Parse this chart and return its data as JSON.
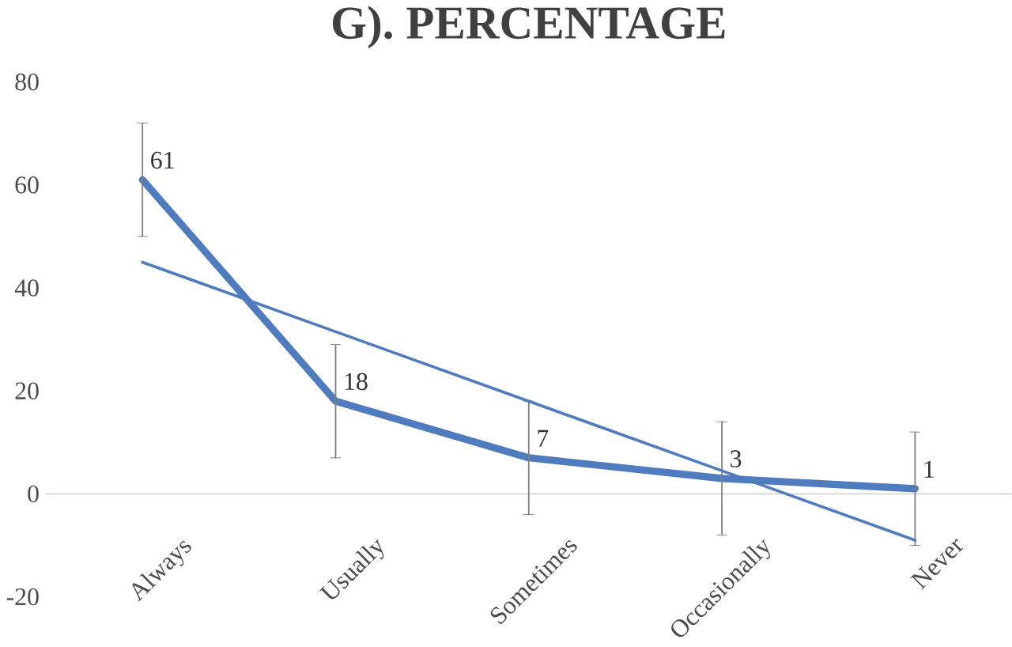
{
  "chart_data": {
    "type": "line",
    "title": "G). PERCENTAGE",
    "categories": [
      "Always",
      "Usually",
      "Sometimes",
      "Occasionally",
      "Never"
    ],
    "series": [
      {
        "color": "#4f7bbf",
        "values": [
          61,
          18,
          7,
          3,
          1
        ],
        "errors": [
          11,
          11,
          11,
          11,
          11
        ],
        "value_labels": [
          "61",
          "18",
          "7",
          "3",
          "1"
        ]
      },
      {
        "type": "line",
        "color": "#4f7bbf",
        "values": [
          45,
          31.5,
          18,
          4.5,
          -9
        ]
      }
    ],
    "ylim": [
      -20,
      80
    ],
    "yticks": [
      -20,
      0,
      20,
      40,
      60,
      80
    ],
    "marker": "none"
  }
}
